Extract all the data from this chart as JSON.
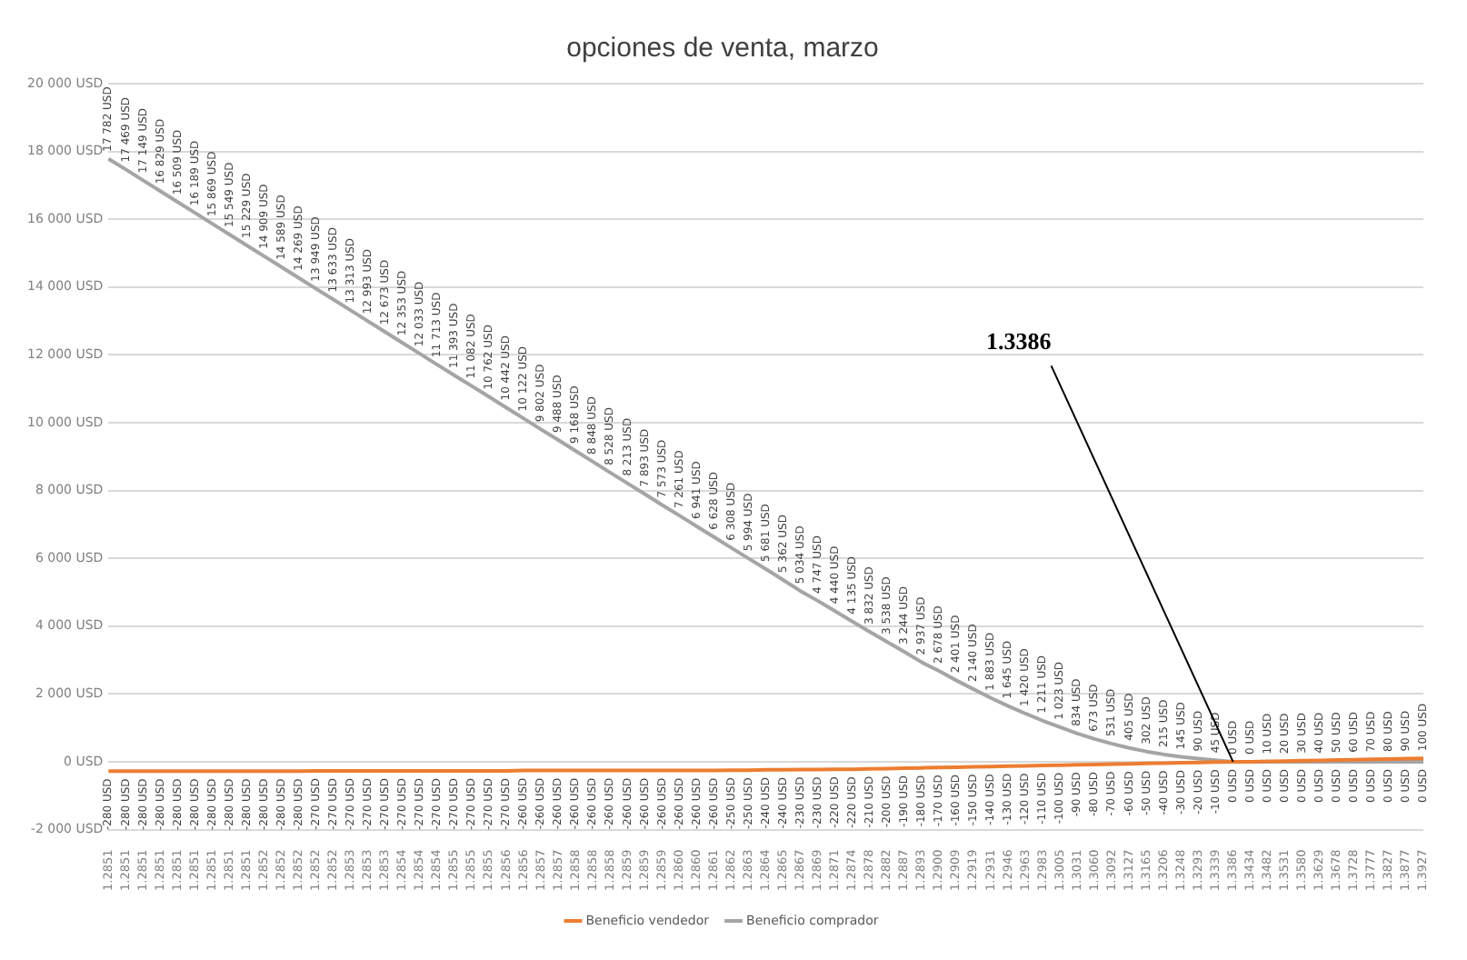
{
  "chart_data": {
    "type": "line",
    "title": "opciones de venta, marzo",
    "categories": [
      "1.2851",
      "1.2851",
      "1.2851",
      "1.2851",
      "1.2851",
      "1.2851",
      "1.2851",
      "1.2851",
      "1.2851",
      "1.2852",
      "1.2852",
      "1.2852",
      "1.2852",
      "1.2852",
      "1.2853",
      "1.2853",
      "1.2853",
      "1.2854",
      "1.2854",
      "1.2854",
      "1.2855",
      "1.2855",
      "1.2855",
      "1.2856",
      "1.2856",
      "1.2857",
      "1.2857",
      "1.2858",
      "1.2858",
      "1.2858",
      "1.2859",
      "1.2859",
      "1.2859",
      "1.2860",
      "1.2860",
      "1.2861",
      "1.2862",
      "1.2863",
      "1.2864",
      "1.2865",
      "1.2867",
      "1.2869",
      "1.2871",
      "1.2874",
      "1.2878",
      "1.2882",
      "1.2887",
      "1.2893",
      "1.2900",
      "1.2909",
      "1.2919",
      "1.2931",
      "1.2946",
      "1.2963",
      "1.2983",
      "1.3005",
      "1.3031",
      "1.3060",
      "1.3092",
      "1.3127",
      "1.3165",
      "1.3206",
      "1.3248",
      "1.3293",
      "1.3339",
      "1.3386",
      "1.3434",
      "1.3482",
      "1.3531",
      "1.3580",
      "1.3629",
      "1.3678",
      "1.3728",
      "1.3777",
      "1.3827",
      "1.3877",
      "1.3927"
    ],
    "series": [
      {
        "name": "Beneficio vendedor",
        "color": "#ed7d31",
        "values": [
          -280,
          -280,
          -280,
          -280,
          -280,
          -280,
          -280,
          -280,
          -280,
          -280,
          -280,
          -280,
          -270,
          -270,
          -270,
          -270,
          -270,
          -270,
          -270,
          -270,
          -270,
          -270,
          -270,
          -270,
          -260,
          -260,
          -260,
          -260,
          -260,
          -260,
          -260,
          -260,
          -260,
          -260,
          -260,
          -260,
          -250,
          -250,
          -240,
          -240,
          -230,
          -230,
          -220,
          -220,
          -210,
          -200,
          -190,
          -180,
          -170,
          -160,
          -150,
          -140,
          -130,
          -120,
          -110,
          -100,
          -90,
          -80,
          -70,
          -60,
          -50,
          -40,
          -30,
          -20,
          -10,
          0,
          0,
          10,
          20,
          30,
          40,
          50,
          60,
          70,
          80,
          90,
          100
        ],
        "value_labels": [
          "-280 USD",
          "-280 USD",
          "-280 USD",
          "-280 USD",
          "-280 USD",
          "-280 USD",
          "-280 USD",
          "-280 USD",
          "-280 USD",
          "-280 USD",
          "-280 USD",
          "-280 USD",
          "-270 USD",
          "-270 USD",
          "-270 USD",
          "-270 USD",
          "-270 USD",
          "-270 USD",
          "-270 USD",
          "-270 USD",
          "-270 USD",
          "-270 USD",
          "-270 USD",
          "-270 USD",
          "-260 USD",
          "-260 USD",
          "-260 USD",
          "-260 USD",
          "-260 USD",
          "-260 USD",
          "-260 USD",
          "-260 USD",
          "-260 USD",
          "-260 USD",
          "-260 USD",
          "-260 USD",
          "-250 USD",
          "-250 USD",
          "-240 USD",
          "-240 USD",
          "-230 USD",
          "-230 USD",
          "-220 USD",
          "-220 USD",
          "-210 USD",
          "-200 USD",
          "-190 USD",
          "-180 USD",
          "-170 USD",
          "-160 USD",
          "-150 USD",
          "-140 USD",
          "-130 USD",
          "-120 USD",
          "-110 USD",
          "-100 USD",
          "-90 USD",
          "-80 USD",
          "-70 USD",
          "-60 USD",
          "-50 USD",
          "-40 USD",
          "-30 USD",
          "-20 USD",
          "-10 USD",
          "0 USD",
          "0 USD",
          "10 USD",
          "20 USD",
          "30 USD",
          "40 USD",
          "50 USD",
          "60 USD",
          "70 USD",
          "80 USD",
          "90 USD",
          "100 USD"
        ]
      },
      {
        "name": "Beneficio comprador",
        "color": "#a5a5a5",
        "values": [
          17782,
          17469,
          17149,
          16829,
          16509,
          16189,
          15869,
          15549,
          15229,
          14909,
          14589,
          14269,
          13949,
          13633,
          13313,
          12993,
          12673,
          12353,
          12033,
          11713,
          11393,
          11082,
          10762,
          10442,
          10122,
          9802,
          9488,
          9168,
          8848,
          8528,
          8213,
          7893,
          7573,
          7261,
          6941,
          6628,
          6308,
          5994,
          5681,
          5362,
          5034,
          4747,
          4440,
          4135,
          3832,
          3538,
          3244,
          2937,
          2678,
          2401,
          2140,
          1883,
          1645,
          1420,
          1211,
          1023,
          834,
          673,
          531,
          405,
          302,
          215,
          145,
          90,
          45,
          0,
          0,
          0,
          0,
          0,
          0,
          0,
          0,
          0,
          0,
          0,
          0
        ],
        "value_labels": [
          "17 782 USD",
          "17 469 USD",
          "17 149 USD",
          "16 829 USD",
          "16 509 USD",
          "16 189 USD",
          "15 869 USD",
          "15 549 USD",
          "15 229 USD",
          "14 909 USD",
          "14 589 USD",
          "14 269 USD",
          "13 949 USD",
          "13 633 USD",
          "13 313 USD",
          "12 993 USD",
          "12 673 USD",
          "12 353 USD",
          "12 033 USD",
          "11 713 USD",
          "11 393 USD",
          "11 082 USD",
          "10 762 USD",
          "10 442 USD",
          "10 122 USD",
          "9 802 USD",
          "9 488 USD",
          "9 168 USD",
          "8 848 USD",
          "8 528 USD",
          "8 213 USD",
          "7 893 USD",
          "7 573 USD",
          "7 261 USD",
          "6 941 USD",
          "6 628 USD",
          "6 308 USD",
          "5 994 USD",
          "5 681 USD",
          "5 362 USD",
          "5 034 USD",
          "4 747 USD",
          "4 440 USD",
          "4 135 USD",
          "3 832 USD",
          "3 538 USD",
          "3 244 USD",
          "2 937 USD",
          "2 678 USD",
          "2 401 USD",
          "2 140 USD",
          "1 883 USD",
          "1 645 USD",
          "1 420 USD",
          "1 211 USD",
          "1 023 USD",
          "834 USD",
          "673 USD",
          "531 USD",
          "405 USD",
          "302 USD",
          "215 USD",
          "145 USD",
          "90 USD",
          "45 USD",
          "0 USD",
          "0 USD",
          "0 USD",
          "0 USD",
          "0 USD",
          "0 USD",
          "0 USD",
          "0 USD",
          "0 USD",
          "0 USD",
          "0 USD",
          "0 USD"
        ]
      }
    ],
    "ylim": [
      -2000,
      20000
    ],
    "yticks": [
      {
        "value": -2000,
        "label": "-2 000 USD"
      },
      {
        "value": 0,
        "label": "0 USD"
      },
      {
        "value": 2000,
        "label": "2 000 USD"
      },
      {
        "value": 4000,
        "label": "4 000 USD"
      },
      {
        "value": 6000,
        "label": "6 000 USD"
      },
      {
        "value": 8000,
        "label": "8 000 USD"
      },
      {
        "value": 10000,
        "label": "10 000 USD"
      },
      {
        "value": 12000,
        "label": "12 000 USD"
      },
      {
        "value": 14000,
        "label": "14 000 USD"
      },
      {
        "value": 16000,
        "label": "16 000 USD"
      },
      {
        "value": 18000,
        "label": "18 000 USD"
      },
      {
        "value": 20000,
        "label": "20 000 USD"
      }
    ],
    "grid": "y",
    "legend": "bottom",
    "marker": "none",
    "line_style": "solid",
    "annotations": [
      {
        "text": "1.3386",
        "x": "1.3386",
        "y": 0
      }
    ]
  }
}
